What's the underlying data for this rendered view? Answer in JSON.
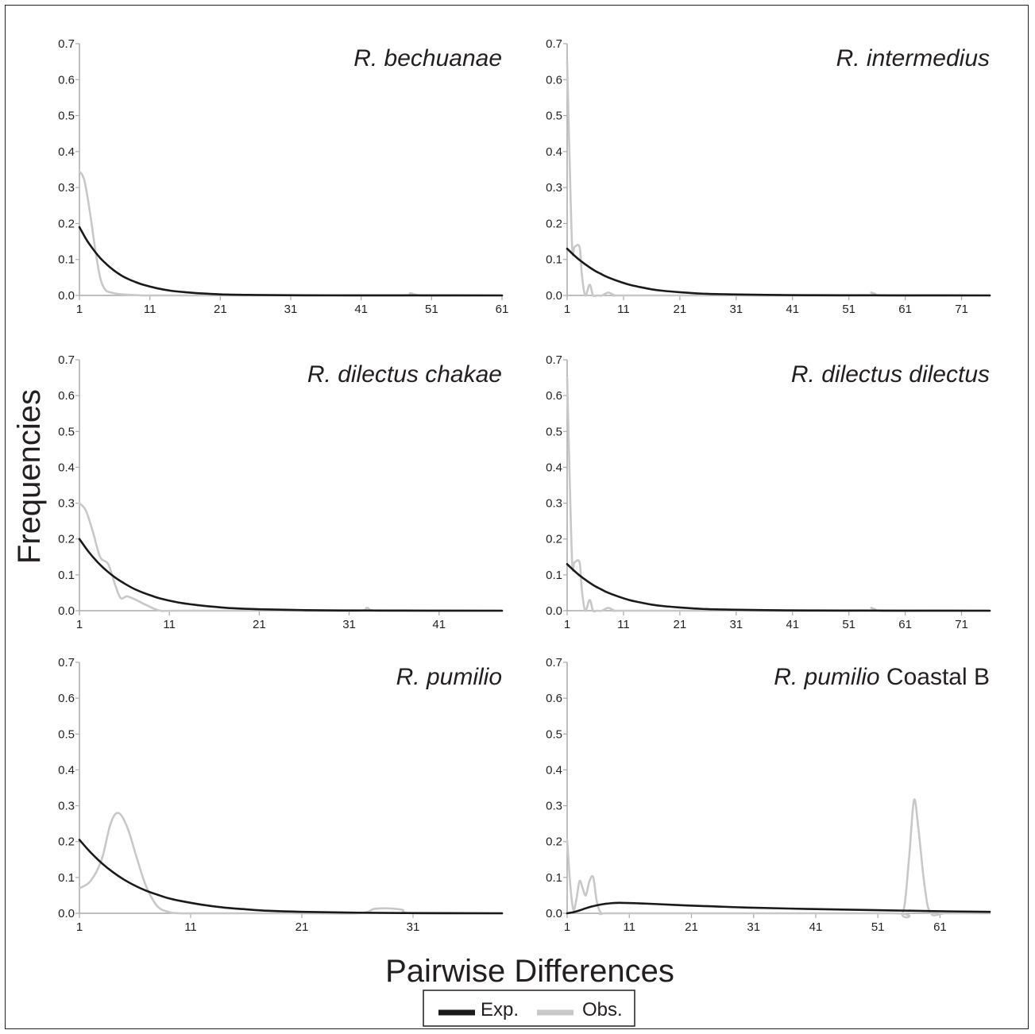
{
  "figure": {
    "ylabel": "Frequencies",
    "xlabel": "Pairwise Differences",
    "legend": {
      "position": "bottom-center",
      "items": [
        {
          "label": "Exp.",
          "color": "#1a1a1a"
        },
        {
          "label": "Obs.",
          "color": "#c8c8c8"
        }
      ]
    }
  },
  "chart_data": [
    {
      "type": "line",
      "title": "R. bechuanae",
      "title_italic": "R. bechuanae",
      "title_plain": "",
      "xlim": [
        1,
        61
      ],
      "xticks": [
        1,
        11,
        21,
        31,
        41,
        51,
        61
      ],
      "ylim": [
        0,
        0.7
      ],
      "yticks": [
        0.0,
        0.1,
        0.2,
        0.3,
        0.4,
        0.5,
        0.6,
        0.7
      ],
      "grid": false,
      "series": [
        {
          "name": "Exp.",
          "color": "#1a1a1a",
          "x": [
            1,
            2,
            3,
            4,
            5,
            6,
            7,
            8,
            9,
            10,
            12,
            14,
            16,
            18,
            21,
            25,
            30,
            40,
            50,
            61
          ],
          "y": [
            0.19,
            0.155,
            0.127,
            0.103,
            0.084,
            0.068,
            0.055,
            0.045,
            0.037,
            0.03,
            0.02,
            0.013,
            0.009,
            0.006,
            0.003,
            0.0015,
            0.0006,
            0.0002,
            0.0001,
            0.0
          ]
        },
        {
          "name": "Obs.",
          "color": "#c8c8c8",
          "x": [
            1,
            1.7,
            2.5,
            3.3,
            4,
            4.7,
            5.5,
            6.5,
            8,
            10,
            12,
            30,
            46.5,
            48,
            49.5,
            55,
            61
          ],
          "y": [
            0.345,
            0.32,
            0.23,
            0.12,
            0.045,
            0.015,
            0.008,
            0.004,
            0.002,
            0.0,
            0.0,
            0.0,
            0.0,
            0.006,
            0.0,
            0.0,
            0.0
          ]
        }
      ]
    },
    {
      "type": "line",
      "title": "R. intermedius",
      "title_italic": "R. intermedius",
      "title_plain": "",
      "xlim": [
        1,
        76
      ],
      "xticks": [
        1,
        11,
        21,
        31,
        41,
        51,
        61,
        71
      ],
      "ylim": [
        0,
        0.7
      ],
      "yticks": [
        0.0,
        0.1,
        0.2,
        0.3,
        0.4,
        0.5,
        0.6,
        0.7
      ],
      "grid": false,
      "series": [
        {
          "name": "Exp.",
          "color": "#1a1a1a",
          "x": [
            1,
            2,
            3,
            4,
            5,
            6,
            7,
            8,
            10,
            12,
            14,
            16,
            18,
            21,
            25,
            30,
            40,
            50,
            60,
            76
          ],
          "y": [
            0.13,
            0.115,
            0.101,
            0.089,
            0.078,
            0.068,
            0.06,
            0.052,
            0.04,
            0.03,
            0.023,
            0.017,
            0.013,
            0.009,
            0.005,
            0.003,
            0.001,
            0.0005,
            0.0002,
            0.0
          ]
        },
        {
          "name": "Obs.",
          "color": "#c8c8c8",
          "x": [
            1,
            1.4,
            1.9,
            2.3,
            3.2,
            3.6,
            4.2,
            5,
            5.6,
            6.3,
            7.2,
            8.3,
            9.5,
            11,
            30,
            53.5,
            55,
            56.5,
            65,
            76
          ],
          "y": [
            0.65,
            0.4,
            0.13,
            0.135,
            0.135,
            0.06,
            0.0,
            0.03,
            0.0,
            0.0,
            0.0,
            0.008,
            0.0,
            0.0,
            0.0,
            0.0,
            0.008,
            0.0,
            0.0,
            0.0
          ]
        }
      ]
    },
    {
      "type": "line",
      "title": "R. dilectus chakae",
      "title_italic": "R. dilectus chakae",
      "title_plain": "",
      "xlim": [
        1,
        48
      ],
      "xticks": [
        1,
        11,
        21,
        31,
        41
      ],
      "ylim": [
        0,
        0.7
      ],
      "yticks": [
        0.0,
        0.1,
        0.2,
        0.3,
        0.4,
        0.5,
        0.6,
        0.7
      ],
      "grid": false,
      "series": [
        {
          "name": "Exp.",
          "color": "#1a1a1a",
          "x": [
            1,
            2,
            3,
            4,
            5,
            6,
            7,
            8,
            9,
            10,
            12,
            14,
            16,
            18,
            21,
            25,
            30,
            40,
            48
          ],
          "y": [
            0.2,
            0.165,
            0.136,
            0.112,
            0.092,
            0.076,
            0.062,
            0.051,
            0.042,
            0.034,
            0.023,
            0.016,
            0.011,
            0.007,
            0.004,
            0.002,
            0.0008,
            0.0002,
            0.0
          ]
        },
        {
          "name": "Obs.",
          "color": "#c8c8c8",
          "x": [
            1,
            1.7,
            2.5,
            3.3,
            4.2,
            5,
            5.6,
            6.3,
            7.3,
            8.5,
            10,
            12,
            25,
            32,
            33,
            34,
            40,
            48
          ],
          "y": [
            0.3,
            0.28,
            0.22,
            0.15,
            0.13,
            0.07,
            0.035,
            0.04,
            0.03,
            0.015,
            0.0,
            0.0,
            0.0,
            0.0,
            0.008,
            0.0,
            0.0,
            0.0
          ]
        }
      ]
    },
    {
      "type": "line",
      "title": "R. dilectus dilectus",
      "title_italic": "R. dilectus dilectus",
      "title_plain": "",
      "xlim": [
        1,
        76
      ],
      "xticks": [
        1,
        11,
        21,
        31,
        41,
        51,
        61,
        71
      ],
      "ylim": [
        0,
        0.7
      ],
      "yticks": [
        0.0,
        0.1,
        0.2,
        0.3,
        0.4,
        0.5,
        0.6,
        0.7
      ],
      "grid": false,
      "series": [
        {
          "name": "Exp.",
          "color": "#1a1a1a",
          "x": [
            1,
            2,
            3,
            4,
            5,
            6,
            7,
            8,
            10,
            12,
            14,
            16,
            18,
            21,
            25,
            30,
            40,
            50,
            60,
            76
          ],
          "y": [
            0.13,
            0.115,
            0.101,
            0.089,
            0.078,
            0.068,
            0.06,
            0.052,
            0.04,
            0.03,
            0.023,
            0.017,
            0.013,
            0.009,
            0.005,
            0.003,
            0.001,
            0.0005,
            0.0002,
            0.0
          ]
        },
        {
          "name": "Obs.",
          "color": "#c8c8c8",
          "x": [
            1,
            1.4,
            1.9,
            2.3,
            3.2,
            3.6,
            4.2,
            5,
            5.6,
            6.3,
            7.2,
            8.3,
            9.5,
            11,
            30,
            53.5,
            55,
            56.5,
            65,
            76
          ],
          "y": [
            0.65,
            0.4,
            0.13,
            0.135,
            0.135,
            0.06,
            0.0,
            0.03,
            0.0,
            0.0,
            0.0,
            0.008,
            0.0,
            0.0,
            0.0,
            0.0,
            0.008,
            0.0,
            0.0,
            0.0
          ]
        }
      ]
    },
    {
      "type": "line",
      "title": "R. pumilio",
      "title_italic": "R. pumilio",
      "title_plain": "",
      "xlim": [
        1,
        39
      ],
      "xticks": [
        1,
        11,
        21,
        31
      ],
      "ylim": [
        0,
        0.7
      ],
      "yticks": [
        0.0,
        0.1,
        0.2,
        0.3,
        0.4,
        0.5,
        0.6,
        0.7
      ],
      "grid": false,
      "series": [
        {
          "name": "Exp.",
          "color": "#1a1a1a",
          "x": [
            1,
            2,
            3,
            4,
            5,
            6,
            7,
            8,
            9,
            10,
            12,
            14,
            16,
            18,
            21,
            25,
            30,
            39
          ],
          "y": [
            0.205,
            0.17,
            0.14,
            0.115,
            0.094,
            0.077,
            0.063,
            0.052,
            0.042,
            0.035,
            0.024,
            0.016,
            0.011,
            0.007,
            0.004,
            0.002,
            0.0008,
            0.0
          ]
        },
        {
          "name": "Obs.",
          "color": "#c8c8c8",
          "x": [
            1,
            2,
            3,
            3.8,
            4.5,
            5.3,
            6.2,
            7,
            8,
            9,
            10,
            12,
            20,
            26,
            27.5,
            28.5,
            30,
            31,
            39
          ],
          "y": [
            0.07,
            0.09,
            0.15,
            0.25,
            0.28,
            0.24,
            0.15,
            0.075,
            0.02,
            0.004,
            0.0,
            0.0,
            0.0,
            0.0,
            0.012,
            0.014,
            0.01,
            0.0,
            0.0
          ]
        }
      ]
    },
    {
      "type": "line",
      "title": "R. pumilio Coastal B",
      "title_italic": "R. pumilio",
      "title_plain": " Coastal B",
      "xlim": [
        1,
        69
      ],
      "xticks": [
        1,
        11,
        21,
        31,
        41,
        51,
        61
      ],
      "ylim": [
        0,
        0.7
      ],
      "yticks": [
        0.0,
        0.1,
        0.2,
        0.3,
        0.4,
        0.5,
        0.6,
        0.7
      ],
      "grid": false,
      "series": [
        {
          "name": "Exp.",
          "color": "#1a1a1a",
          "x": [
            1,
            2,
            3,
            4,
            5,
            6,
            7,
            8,
            9,
            10,
            12,
            15,
            20,
            25,
            30,
            40,
            50,
            60,
            69
          ],
          "y": [
            0.0,
            0.003,
            0.008,
            0.014,
            0.019,
            0.023,
            0.026,
            0.028,
            0.029,
            0.029,
            0.028,
            0.026,
            0.022,
            0.019,
            0.016,
            0.012,
            0.009,
            0.006,
            0.004
          ]
        },
        {
          "name": "Obs.",
          "color": "#c8c8c8",
          "x": [
            1,
            1.5,
            2,
            2.5,
            3,
            3.5,
            4,
            4.6,
            5.2,
            5.8,
            6.5,
            7.5,
            20,
            53,
            55,
            56,
            56.8,
            57.5,
            58.5,
            59.5,
            62,
            69
          ],
          "y": [
            0.205,
            0.08,
            0.01,
            0.04,
            0.09,
            0.07,
            0.05,
            0.09,
            0.1,
            0.03,
            0.0,
            0.0,
            0.0,
            0.0,
            0.0,
            0.15,
            0.315,
            0.24,
            0.08,
            0.0,
            0.0,
            0.0
          ]
        }
      ]
    }
  ]
}
